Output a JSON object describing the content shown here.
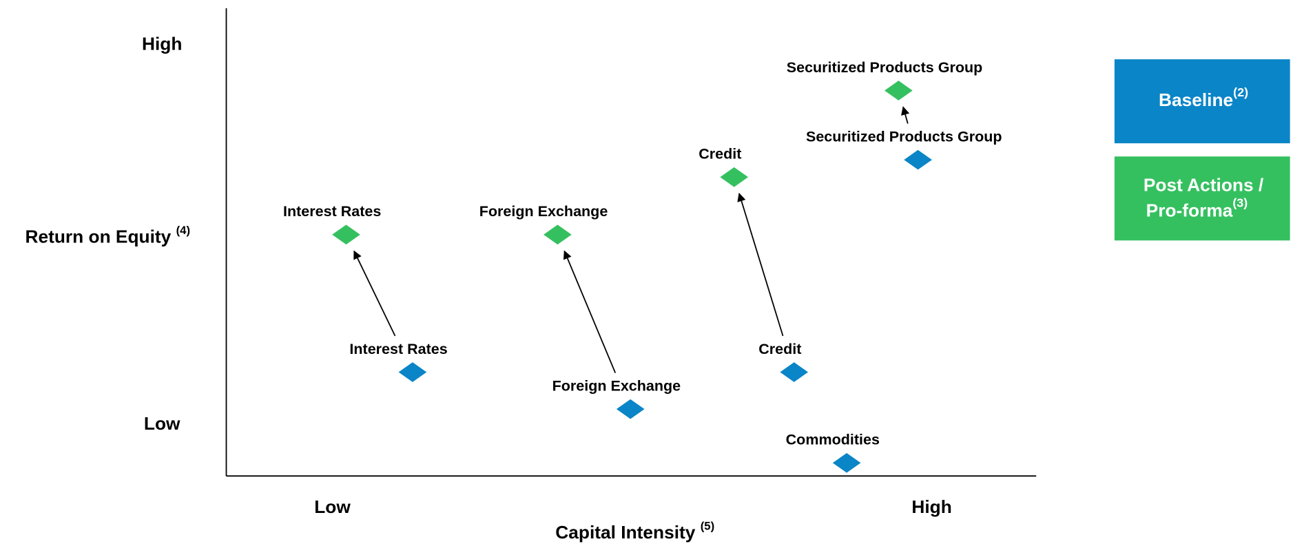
{
  "chart_data": {
    "type": "scatter",
    "x_label": "Capital Intensity",
    "x_label_note": "(5)",
    "y_label": "Return on Equity",
    "y_label_note": "(4)",
    "xlim": [
      0,
      100
    ],
    "ylim": [
      0,
      100
    ],
    "xticks": [
      {
        "value": 13.1,
        "label": "Low"
      },
      {
        "value": 87.1,
        "label": "High"
      }
    ],
    "yticks": [
      {
        "value": 10.9,
        "label": "Low"
      },
      {
        "value": 92.1,
        "label": "High"
      }
    ],
    "series": [
      {
        "name": "Baseline",
        "name_note": "(2)",
        "color": "#0a85c7",
        "labels": [
          "Interest Rates",
          "Foreign Exchange",
          "Credit",
          "Securitized Products Group",
          "Commodities"
        ],
        "x": [
          23.0,
          49.9,
          70.1,
          85.4,
          76.6
        ],
        "values": [
          22.2,
          14.3,
          22.2,
          67.6,
          2.8
        ]
      },
      {
        "name": "Post Actions / Pro-forma",
        "name_note": "(3)",
        "color": "#35c060",
        "labels": [
          "Interest Rates",
          "Foreign Exchange",
          "Credit",
          "Securitized Products Group",
          null
        ],
        "x": [
          14.8,
          40.9,
          62.7,
          83.0,
          null
        ],
        "values": [
          51.6,
          51.6,
          63.9,
          82.4,
          null
        ]
      }
    ]
  }
}
